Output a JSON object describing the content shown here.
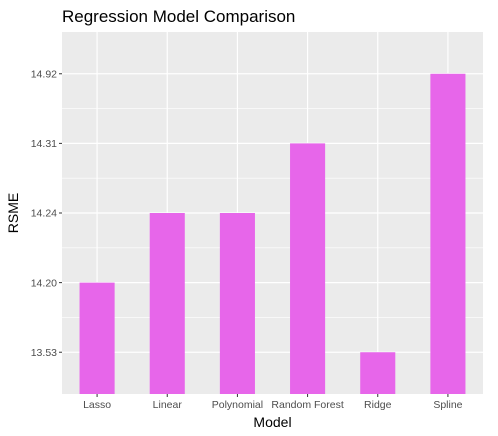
{
  "chart_data": {
    "type": "bar",
    "title": "Regression Model Comparison",
    "xlabel": "Model",
    "ylabel": "RSME",
    "categories": [
      "Lasso",
      "Linear",
      "Polynomial",
      "Random Forest",
      "Ridge",
      "Spline"
    ],
    "y_tick_labels": [
      "13.53",
      "14.20",
      "14.24",
      "14.31",
      "14.92"
    ],
    "values": [
      "14.20",
      "14.24",
      "14.24",
      "14.31",
      "13.53",
      "14.92"
    ],
    "y_scale": "discrete",
    "grid": true,
    "legend": "none",
    "colors": {
      "bar": "#e766ea",
      "panel": "#ebebeb",
      "grid": "#ffffff",
      "tick_text": "#4d4d4d",
      "tick_mark": "#333333"
    }
  }
}
